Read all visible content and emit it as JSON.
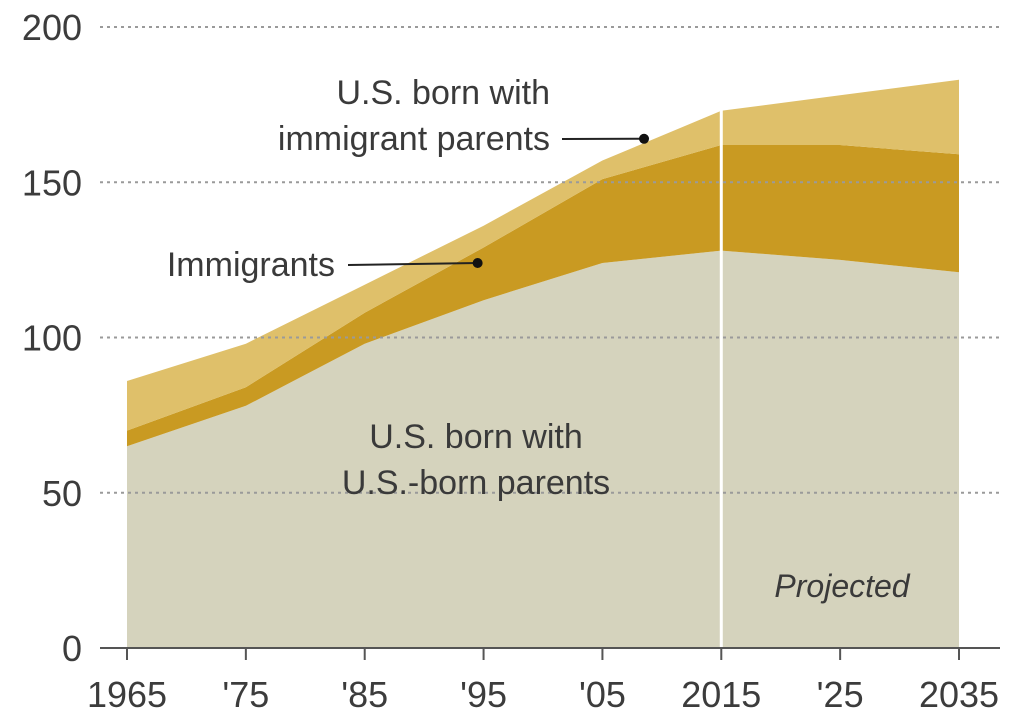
{
  "chart_data": {
    "type": "area",
    "stacked": true,
    "x": [
      1965,
      1975,
      1985,
      1995,
      2005,
      2015,
      2025,
      2035
    ],
    "x_tick_labels": [
      "1965",
      "'75",
      "'85",
      "'95",
      "'05",
      "2015",
      "'25",
      "2035"
    ],
    "y_ticks": [
      0,
      50,
      100,
      150,
      200
    ],
    "ylim": [
      0,
      200
    ],
    "grid": "horizontal dotted",
    "series": [
      {
        "name": "U.S. born with U.S.-born parents",
        "label_lines": [
          "U.S. born with",
          "U.S.-born parents"
        ],
        "color": "#d5d3bd",
        "values": [
          65,
          78,
          98,
          112,
          124,
          128,
          125,
          121
        ]
      },
      {
        "name": "Immigrants",
        "label_lines": [
          "Immigrants"
        ],
        "color": "#c99a22",
        "values": [
          5,
          6,
          10,
          17,
          27,
          34,
          37,
          38
        ]
      },
      {
        "name": "U.S. born with immigrant parents",
        "label_lines": [
          "U.S. born with",
          "immigrant parents"
        ],
        "color": "#dfc06a",
        "values": [
          16,
          14,
          9,
          7,
          6,
          11,
          16,
          24
        ]
      }
    ],
    "projection_start": 2015,
    "annotation": "Projected"
  }
}
